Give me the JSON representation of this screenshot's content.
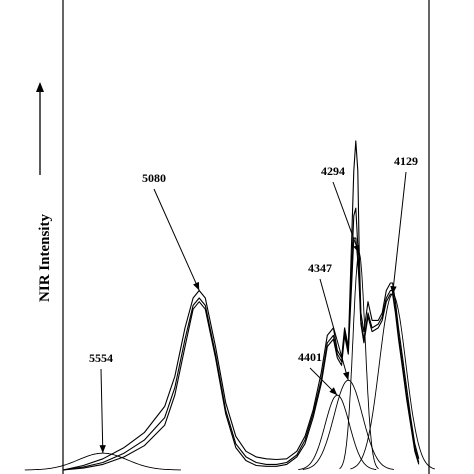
{
  "chart_data": {
    "type": "line",
    "title": "",
    "xlabel": "",
    "ylabel": "NIR Intensity",
    "x_direction": "descending",
    "xlim": [
      5750,
      3950
    ],
    "ylim": [
      0,
      1.0
    ],
    "grid": false,
    "legend": "none",
    "series": [
      {
        "kind": "spectrum",
        "x": [
          5750,
          5650,
          5554,
          5450,
          5350,
          5250,
          5200,
          5150,
          5110,
          5080,
          5050,
          5000,
          4950,
          4900,
          4850,
          4800,
          4750,
          4700,
          4650,
          4600,
          4560,
          4520,
          4480,
          4450,
          4420,
          4401,
          4380,
          4365,
          4347,
          4330,
          4320,
          4310,
          4300,
          4294,
          4285,
          4270,
          4250,
          4230,
          4200,
          4180,
          4160,
          4140,
          4129,
          4115,
          4100,
          4080,
          4060,
          4040,
          4020,
          4000
        ],
        "y": [
          0.0,
          0.012,
          0.03,
          0.06,
          0.1,
          0.17,
          0.25,
          0.38,
          0.46,
          0.48,
          0.46,
          0.33,
          0.18,
          0.09,
          0.05,
          0.035,
          0.03,
          0.028,
          0.03,
          0.05,
          0.09,
          0.16,
          0.26,
          0.36,
          0.38,
          0.32,
          0.3,
          0.38,
          0.33,
          0.62,
          0.8,
          0.88,
          0.8,
          0.6,
          0.42,
          0.37,
          0.45,
          0.4,
          0.4,
          0.42,
          0.48,
          0.5,
          0.5,
          0.45,
          0.38,
          0.3,
          0.22,
          0.14,
          0.07,
          0.03
        ]
      },
      {
        "kind": "spectrum",
        "x": [
          5750,
          5650,
          5554,
          5450,
          5350,
          5250,
          5200,
          5150,
          5110,
          5080,
          5050,
          5000,
          4950,
          4900,
          4850,
          4800,
          4750,
          4700,
          4650,
          4600,
          4560,
          4520,
          4480,
          4450,
          4420,
          4401,
          4380,
          4365,
          4347,
          4330,
          4320,
          4310,
          4300,
          4294,
          4285,
          4270,
          4250,
          4230,
          4200,
          4180,
          4160,
          4140,
          4129,
          4115,
          4100,
          4080,
          4060,
          4040,
          4020,
          4000
        ],
        "y": [
          0.0,
          0.008,
          0.02,
          0.045,
          0.08,
          0.14,
          0.22,
          0.35,
          0.44,
          0.46,
          0.44,
          0.31,
          0.16,
          0.07,
          0.035,
          0.02,
          0.015,
          0.015,
          0.02,
          0.04,
          0.08,
          0.15,
          0.24,
          0.34,
          0.36,
          0.31,
          0.29,
          0.37,
          0.32,
          0.55,
          0.68,
          0.7,
          0.6,
          0.52,
          0.4,
          0.35,
          0.42,
          0.38,
          0.39,
          0.41,
          0.46,
          0.48,
          0.48,
          0.43,
          0.36,
          0.28,
          0.2,
          0.13,
          0.06,
          0.02
        ]
      },
      {
        "kind": "spectrum",
        "x": [
          5750,
          5650,
          5554,
          5450,
          5350,
          5250,
          5200,
          5150,
          5110,
          5080,
          5050,
          5000,
          4950,
          4900,
          4850,
          4800,
          4750,
          4700,
          4650,
          4600,
          4560,
          4520,
          4480,
          4450,
          4420,
          4401,
          4380,
          4365,
          4347,
          4330,
          4320,
          4310,
          4300,
          4294,
          4285,
          4270,
          4250,
          4230,
          4200,
          4180,
          4160,
          4140,
          4129,
          4115,
          4100,
          4080,
          4060,
          4040,
          4020,
          4000
        ],
        "y": [
          0.0,
          0.005,
          0.015,
          0.035,
          0.065,
          0.12,
          0.2,
          0.33,
          0.43,
          0.45,
          0.43,
          0.3,
          0.15,
          0.06,
          0.025,
          0.012,
          0.01,
          0.01,
          0.015,
          0.035,
          0.07,
          0.14,
          0.23,
          0.33,
          0.35,
          0.3,
          0.28,
          0.36,
          0.31,
          0.5,
          0.62,
          0.62,
          0.56,
          0.5,
          0.39,
          0.34,
          0.41,
          0.37,
          0.38,
          0.4,
          0.45,
          0.47,
          0.47,
          0.42,
          0.35,
          0.27,
          0.19,
          0.12,
          0.05,
          0.015
        ]
      },
      {
        "kind": "band",
        "center": 5554,
        "height": 0.045,
        "width": 120
      },
      {
        "kind": "band",
        "center": 4401,
        "height": 0.2,
        "width": 60
      },
      {
        "kind": "band",
        "center": 4347,
        "height": 0.24,
        "width": 70
      },
      {
        "kind": "band",
        "center": 4294,
        "height": 0.58,
        "width": 30
      },
      {
        "kind": "band",
        "center": 4129,
        "height": 0.47,
        "width": 65
      }
    ],
    "annotations": [
      {
        "text": "5080",
        "x": 5080
      },
      {
        "text": "5554",
        "x": 5554
      },
      {
        "text": "4294",
        "x": 4294
      },
      {
        "text": "4129",
        "x": 4129
      },
      {
        "text": "4347",
        "x": 4347
      },
      {
        "text": "4401",
        "x": 4401
      }
    ]
  }
}
